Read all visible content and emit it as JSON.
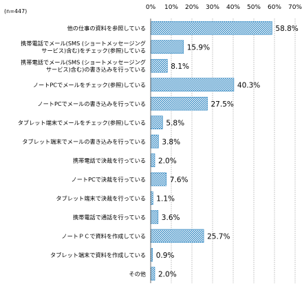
{
  "chart_data": {
    "type": "bar",
    "orientation": "horizontal",
    "note": "(n=447)",
    "xlim": [
      0,
      70
    ],
    "ticks": [
      "0%",
      "10%",
      "20%",
      "30%",
      "40%",
      "50%",
      "60%",
      "70%"
    ],
    "grid": true,
    "bar_color": "#2e86c1",
    "categories": [
      [
        "他の仕事の資料を参照している"
      ],
      [
        "携帯電話でメール(SMS (ショートメッセージング",
        "サービス)含む)をチェック(参照)している"
      ],
      [
        "携帯電話でメール(SMS (ショートメッセージング",
        "サービス)含む)の書き込みを行っている"
      ],
      [
        "ノートPCでメールをチェック(参照)している"
      ],
      [
        "ノートPCでメールの書き込みを行っている"
      ],
      [
        "タブレット端末でメールをチェック(参照)している"
      ],
      [
        "タブレット端末でメールの書き込みを行っている"
      ],
      [
        "携帯電話で決裁を行っている"
      ],
      [
        "ノートPCで決裁を行っている"
      ],
      [
        "タブレット端末で決裁を行っている"
      ],
      [
        "携帯電話で通話を行っている"
      ],
      [
        "ノートＰＣで資料を作成している"
      ],
      [
        "タブレット端末で資料を作成している"
      ],
      [
        "その他"
      ]
    ],
    "values": [
      58.8,
      15.9,
      8.1,
      40.3,
      27.5,
      5.8,
      3.8,
      2.0,
      7.6,
      1.1,
      3.6,
      25.7,
      0.9,
      2.0
    ],
    "value_labels": [
      "58.8%",
      "15.9%",
      "8.1%",
      "40.3%",
      "27.5%",
      "5.8%",
      "3.8%",
      "2.0%",
      "7.6%",
      "1.1%",
      "3.6%",
      "25.7%",
      "0.9%",
      "2.0%"
    ]
  }
}
